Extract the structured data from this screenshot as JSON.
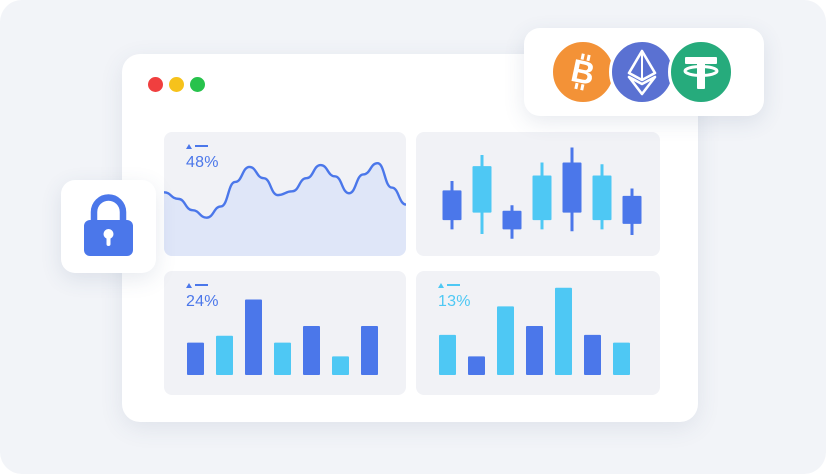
{
  "window": {
    "controls": {
      "close_color": "#f03f3f",
      "minimize_color": "#f6c21b",
      "zoom_color": "#27c24c"
    }
  },
  "colors": {
    "accent_dark": "#4b77ea",
    "accent_light": "#4ec8f4",
    "line_fill": "#dfe6f8",
    "card_bg": "#f1f2f6"
  },
  "cards": {
    "line": {
      "percent": "48%",
      "icon": "mini-trend-icon"
    },
    "candles": {
      "icon": "candlestick-chart"
    },
    "bars_left": {
      "percent": "24%",
      "icon": "mini-trend-icon"
    },
    "bars_right": {
      "percent": "13%",
      "icon": "mini-trend-icon"
    }
  },
  "chart_data": [
    {
      "type": "line",
      "y": [
        55,
        48,
        36,
        28,
        40,
        66,
        82,
        70,
        52,
        56,
        70,
        84,
        72,
        54,
        74,
        86,
        60,
        42
      ]
    },
    {
      "type": "candlestick",
      "candles": [
        {
          "low": 20,
          "open": 30,
          "close": 62,
          "high": 72,
          "color": "dark"
        },
        {
          "low": 15,
          "open": 38,
          "close": 88,
          "high": 100,
          "color": "light"
        },
        {
          "low": 10,
          "open": 20,
          "close": 40,
          "high": 46,
          "color": "dark"
        },
        {
          "low": 20,
          "open": 30,
          "close": 78,
          "high": 92,
          "color": "light"
        },
        {
          "low": 18,
          "open": 38,
          "close": 92,
          "high": 108,
          "color": "dark"
        },
        {
          "low": 20,
          "open": 30,
          "close": 78,
          "high": 90,
          "color": "light"
        },
        {
          "low": 14,
          "open": 26,
          "close": 56,
          "high": 64,
          "color": "dark"
        }
      ]
    },
    {
      "type": "bar",
      "values": [
        33,
        40,
        77,
        33,
        50,
        19,
        50
      ],
      "colors": [
        "dark",
        "light",
        "dark",
        "light",
        "dark",
        "light",
        "dark"
      ]
    },
    {
      "type": "bar",
      "values": [
        41,
        19,
        70,
        50,
        89,
        41,
        33
      ],
      "colors": [
        "light",
        "dark",
        "light",
        "dark",
        "light",
        "dark",
        "light"
      ]
    }
  ],
  "lock": {
    "icon": "padlock-icon",
    "color": "#4b77ea"
  },
  "coins": [
    {
      "icon": "bitcoin-icon",
      "color": "#f39237"
    },
    {
      "icon": "ethereum-icon",
      "color": "#5a71d2"
    },
    {
      "icon": "tether-icon",
      "color": "#26ab7c"
    }
  ]
}
